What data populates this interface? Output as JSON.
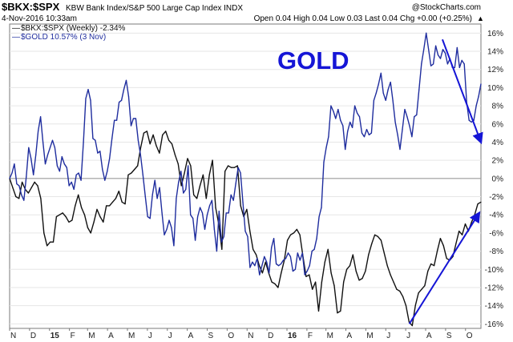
{
  "header": {
    "symbol": "$BKX:$SPX",
    "description": "KBW Bank Index/S&P 500 Large Cap Index  INDX",
    "copyright": "@StockCharts.com",
    "date": "4-Nov-2016 10:33am",
    "quote": "Open 0.04  High 0.04  Low 0.03  Last 0.04  Chg +0.00 (+0.25%)",
    "quote_arrow": "▲"
  },
  "legend": [
    {
      "label": "$BKX:$SPX (Weekly) -2.34%",
      "color": "#111111",
      "marker": "—"
    },
    {
      "label": "$GOLD 10.57% (3 Nov)",
      "color": "#1f2d9e",
      "marker": "—"
    }
  ],
  "annotation": {
    "text": "GOLD",
    "color": "#1515d6"
  },
  "chart_data": {
    "type": "line",
    "xlabel": "",
    "ylabel": "",
    "ylim": [
      -16.5,
      17
    ],
    "y_ticks": [
      16,
      14,
      12,
      10,
      8,
      6,
      4,
      2,
      0,
      -2,
      -4,
      -6,
      -8,
      -10,
      -12,
      -14,
      -16
    ],
    "y_tick_labels": [
      "16%",
      "14%",
      "12%",
      "10%",
      "8%",
      "6%",
      "4%",
      "2%",
      "0%",
      "-2%",
      "-4%",
      "-6%",
      "-8%",
      "-10%",
      "-12%",
      "-14%",
      "-16%"
    ],
    "x_ticks": [
      {
        "label": "N",
        "week": 0,
        "bold": false
      },
      {
        "label": "D",
        "week": 4.4,
        "bold": false
      },
      {
        "label": "15",
        "week": 8.8,
        "bold": true
      },
      {
        "label": "F",
        "week": 13.2,
        "bold": false
      },
      {
        "label": "M",
        "week": 17.2,
        "bold": false
      },
      {
        "label": "A",
        "week": 21.6,
        "bold": false
      },
      {
        "label": "M",
        "week": 26,
        "bold": false
      },
      {
        "label": "J",
        "week": 30.4,
        "bold": false
      },
      {
        "label": "J",
        "week": 34.8,
        "bold": false
      },
      {
        "label": "A",
        "week": 39.2,
        "bold": false
      },
      {
        "label": "S",
        "week": 43.6,
        "bold": false
      },
      {
        "label": "O",
        "week": 48,
        "bold": false
      },
      {
        "label": "N",
        "week": 52.4,
        "bold": false
      },
      {
        "label": "D",
        "week": 56.8,
        "bold": false
      },
      {
        "label": "16",
        "week": 61.2,
        "bold": true
      },
      {
        "label": "F",
        "week": 65.6,
        "bold": false
      },
      {
        "label": "M",
        "week": 69.8,
        "bold": false
      },
      {
        "label": "A",
        "week": 74.2,
        "bold": false
      },
      {
        "label": "M",
        "week": 78.6,
        "bold": false
      },
      {
        "label": "J",
        "week": 83,
        "bold": false
      },
      {
        "label": "J",
        "week": 87.4,
        "bold": false
      },
      {
        "label": "A",
        "week": 91.8,
        "bold": false
      },
      {
        "label": "S",
        "week": 96.2,
        "bold": false
      },
      {
        "label": "O",
        "week": 100.6,
        "bold": false
      }
    ],
    "xlim": [
      0,
      104
    ],
    "zero_line": true,
    "series": [
      {
        "name": "$BKX:$SPX (Weekly) -2.34%",
        "color": "#111111",
        "values": [
          0,
          -1,
          -2,
          -2.2,
          -0.4,
          -1.2,
          -1.6,
          -1,
          -0.4,
          -0.8,
          -2.2,
          -6,
          -7.4,
          -7,
          -7,
          -4.2,
          -4,
          -3.8,
          -4.2,
          -4.8,
          -4.6,
          -3,
          -1.8,
          -3.2,
          -4,
          -5.4,
          -6,
          -4.8,
          -3.4,
          -4.2,
          -4.8,
          -3,
          -3,
          -2.6,
          -2.2,
          -1.4,
          -2.6,
          -2.8,
          0.4,
          0.6,
          1,
          1.4,
          3.4,
          5,
          5.2,
          3.8,
          4.8,
          3.6,
          2.8,
          4.8,
          5.2,
          4.2,
          3.8,
          2.6,
          1.6,
          -0.8,
          0.6,
          2.2,
          1.4,
          -1.8,
          -2.2,
          -0.8,
          0.4,
          -2.2,
          0.4,
          2,
          -3.2,
          -5,
          -7.8,
          0.8,
          1.4,
          1.2,
          1.2,
          1.4,
          -3,
          -4.2,
          -3.4,
          -5.8,
          -7.8,
          -8.4,
          -9.6,
          -10.4,
          -9.2,
          -10.4,
          -11.4,
          -11.6,
          -12,
          -10.4,
          -9,
          -6.8,
          -6.2,
          -6,
          -5.6,
          -6.2,
          -8.6,
          -10.8,
          -10.6,
          -12.2,
          -11.4,
          -14.6,
          -11.4,
          -9.2,
          -7.8,
          -10.4,
          -11.8,
          -14.8,
          -14.6,
          -11.4,
          -10,
          -9.6,
          -8.4,
          -10.2,
          -11.2,
          -11,
          -10.2,
          -8.4,
          -7.2,
          -6.2,
          -6.4,
          -6.8,
          -8.2,
          -9.6,
          -10.6,
          -11.4,
          -12.2,
          -12.4,
          -13,
          -14,
          -15.8,
          -16.2,
          -14,
          -12.6,
          -12.2,
          -11.8,
          -10.2,
          -9.4,
          -9.6,
          -8,
          -6.6,
          -7.4,
          -8.8,
          -9,
          -8.6,
          -7.2,
          -5.8,
          -6.2,
          -5,
          -5.8,
          -4.8,
          -4,
          -2.8,
          -2.6
        ]
      },
      {
        "name": "$GOLD 10.57% (3 Nov)",
        "color": "#1f2d9e",
        "values": [
          0,
          0.6,
          1.6,
          -0.6,
          -0.8,
          -1.8,
          -2.4,
          0.2,
          3.4,
          2.2,
          0.4,
          2.6,
          5.2,
          6.8,
          4,
          1.6,
          2.6,
          3.4,
          4.2,
          3.4,
          1.4,
          0.8,
          2.4,
          1.6,
          1.2,
          -0.8,
          -0.4,
          -1.2,
          0.4,
          0.6,
          -0.2,
          4,
          8.8,
          9.8,
          8.6,
          4.4,
          4.2,
          2.8,
          3,
          1,
          -0.2,
          0.8,
          2.2,
          4.4,
          6.4,
          6.4,
          8.4,
          8.6,
          9.8,
          10.8,
          9,
          5.8,
          6.6,
          6.6,
          4.2,
          2.6,
          0.4,
          -2,
          -4.2,
          -4.4,
          -1.8,
          -0.2,
          -2.2,
          -1,
          -3.8,
          -6.2,
          -5.6,
          -4.6,
          -5.4,
          -7.4,
          -2.2,
          -0.4,
          0.8,
          -1.6,
          -1.2,
          1.4,
          -4,
          -4.4,
          -6.8,
          -4.2,
          -3.2,
          -3.8,
          -5.6,
          -4,
          -3,
          -2.4,
          -5.6,
          -8,
          -3.6,
          -7,
          -6.4,
          -3.8,
          -3.8,
          -1.8,
          -2.4,
          -0.6,
          1.2,
          0.6,
          -2.6,
          -5.8,
          -6.4,
          -9.8,
          -9.2,
          -9.6,
          -8.8,
          -10.6,
          -9.6,
          -8.6,
          -9.2,
          -10.4,
          -7.6,
          -6.6,
          -9.4,
          -9.6,
          -9.4,
          -9,
          -8.8,
          -8.2,
          -8.6,
          -10.2,
          -10,
          -8.2,
          -9,
          -8.2,
          -10.6,
          -10.2,
          -9.6,
          -8,
          -7.8,
          -6.6,
          -4.2,
          -3.2,
          1.8,
          3.4,
          4.6,
          8,
          7.4,
          6.6,
          7.6,
          6.4,
          5.8,
          3.2,
          5.2,
          6.2,
          5.6,
          8,
          7.2,
          6.8,
          5,
          4.6,
          5.4,
          4.8,
          5,
          8.6,
          9.4,
          10.4,
          11.6,
          9.4,
          8.6,
          9.8,
          10.6,
          8.6,
          6.2,
          4.8,
          3.2,
          5.4,
          7.6,
          6.8,
          5.8,
          4.6,
          6.8,
          7,
          9.8,
          12.6,
          14.2,
          16,
          14.2,
          12.4,
          12.6,
          14.6,
          13.6,
          13.2,
          14.2,
          13.8,
          12.6,
          13.2,
          12.2,
          12.2,
          14.4,
          12.2,
          13,
          12.6,
          8.4,
          6.4,
          6.2,
          6.4,
          8,
          9,
          10.4
        ]
      }
    ],
    "trendlines": [
      {
        "name": "gold-down",
        "color": "#1515d6",
        "from": [
          95.5,
          15.3
        ],
        "to": [
          104,
          4
        ]
      },
      {
        "name": "ratio-up",
        "color": "#1515d6",
        "from": [
          88.2,
          -16
        ],
        "to": [
          103.6,
          -3.8
        ]
      }
    ]
  }
}
